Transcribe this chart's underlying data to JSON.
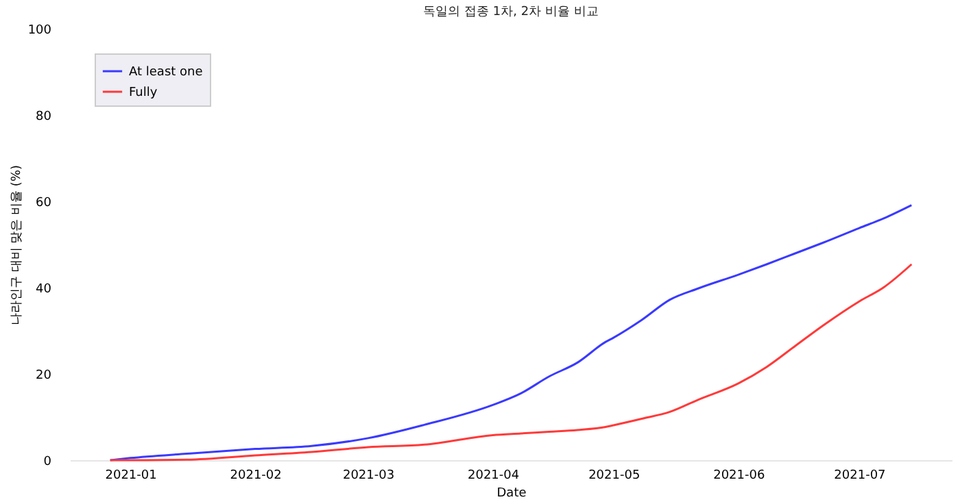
{
  "chart_data": {
    "type": "line",
    "title": "독일의 접종 1차, 2차 비율 비교",
    "xlabel": "Date",
    "ylabel": "나라인구 대비 맞은 비율 (%)",
    "x": [
      "2020-12-27",
      "2021-01-01",
      "2021-01-15",
      "2021-02-01",
      "2021-02-15",
      "2021-03-01",
      "2021-03-15",
      "2021-04-01",
      "2021-04-08",
      "2021-04-15",
      "2021-04-22",
      "2021-04-29",
      "2021-05-01",
      "2021-05-08",
      "2021-05-15",
      "2021-05-22",
      "2021-06-01",
      "2021-06-08",
      "2021-06-15",
      "2021-06-22",
      "2021-07-01",
      "2021-07-07",
      "2021-07-14"
    ],
    "series": [
      {
        "name": "At least one",
        "color": "#3a3aff",
        "values": [
          0,
          0.5,
          1.5,
          2.6,
          3.3,
          5.1,
          8.2,
          12.8,
          15.5,
          19.4,
          22.6,
          27.4,
          28.4,
          32.5,
          37.2,
          39.8,
          43.0,
          45.4,
          47.9,
          50.4,
          53.8,
          56.0,
          59.1
        ]
      },
      {
        "name": "Fully",
        "color": "#ff3a3a",
        "values": [
          0,
          0,
          0.1,
          1.1,
          1.9,
          3.0,
          3.6,
          5.8,
          6.2,
          6.6,
          7.0,
          7.7,
          8.1,
          9.6,
          11.2,
          14.0,
          17.8,
          21.6,
          26.4,
          31.2,
          36.8,
          40.0,
          45.4
        ]
      }
    ],
    "xlim": [
      "2020-12-17",
      "2021-07-24"
    ],
    "ylim": [
      0,
      100
    ],
    "xticks": [
      "2021-01",
      "2021-02",
      "2021-03",
      "2021-04",
      "2021-05",
      "2021-06",
      "2021-07"
    ],
    "yticks": [
      0,
      20,
      40,
      60,
      80,
      100
    ],
    "legend": "top left",
    "line_style": "solid"
  }
}
